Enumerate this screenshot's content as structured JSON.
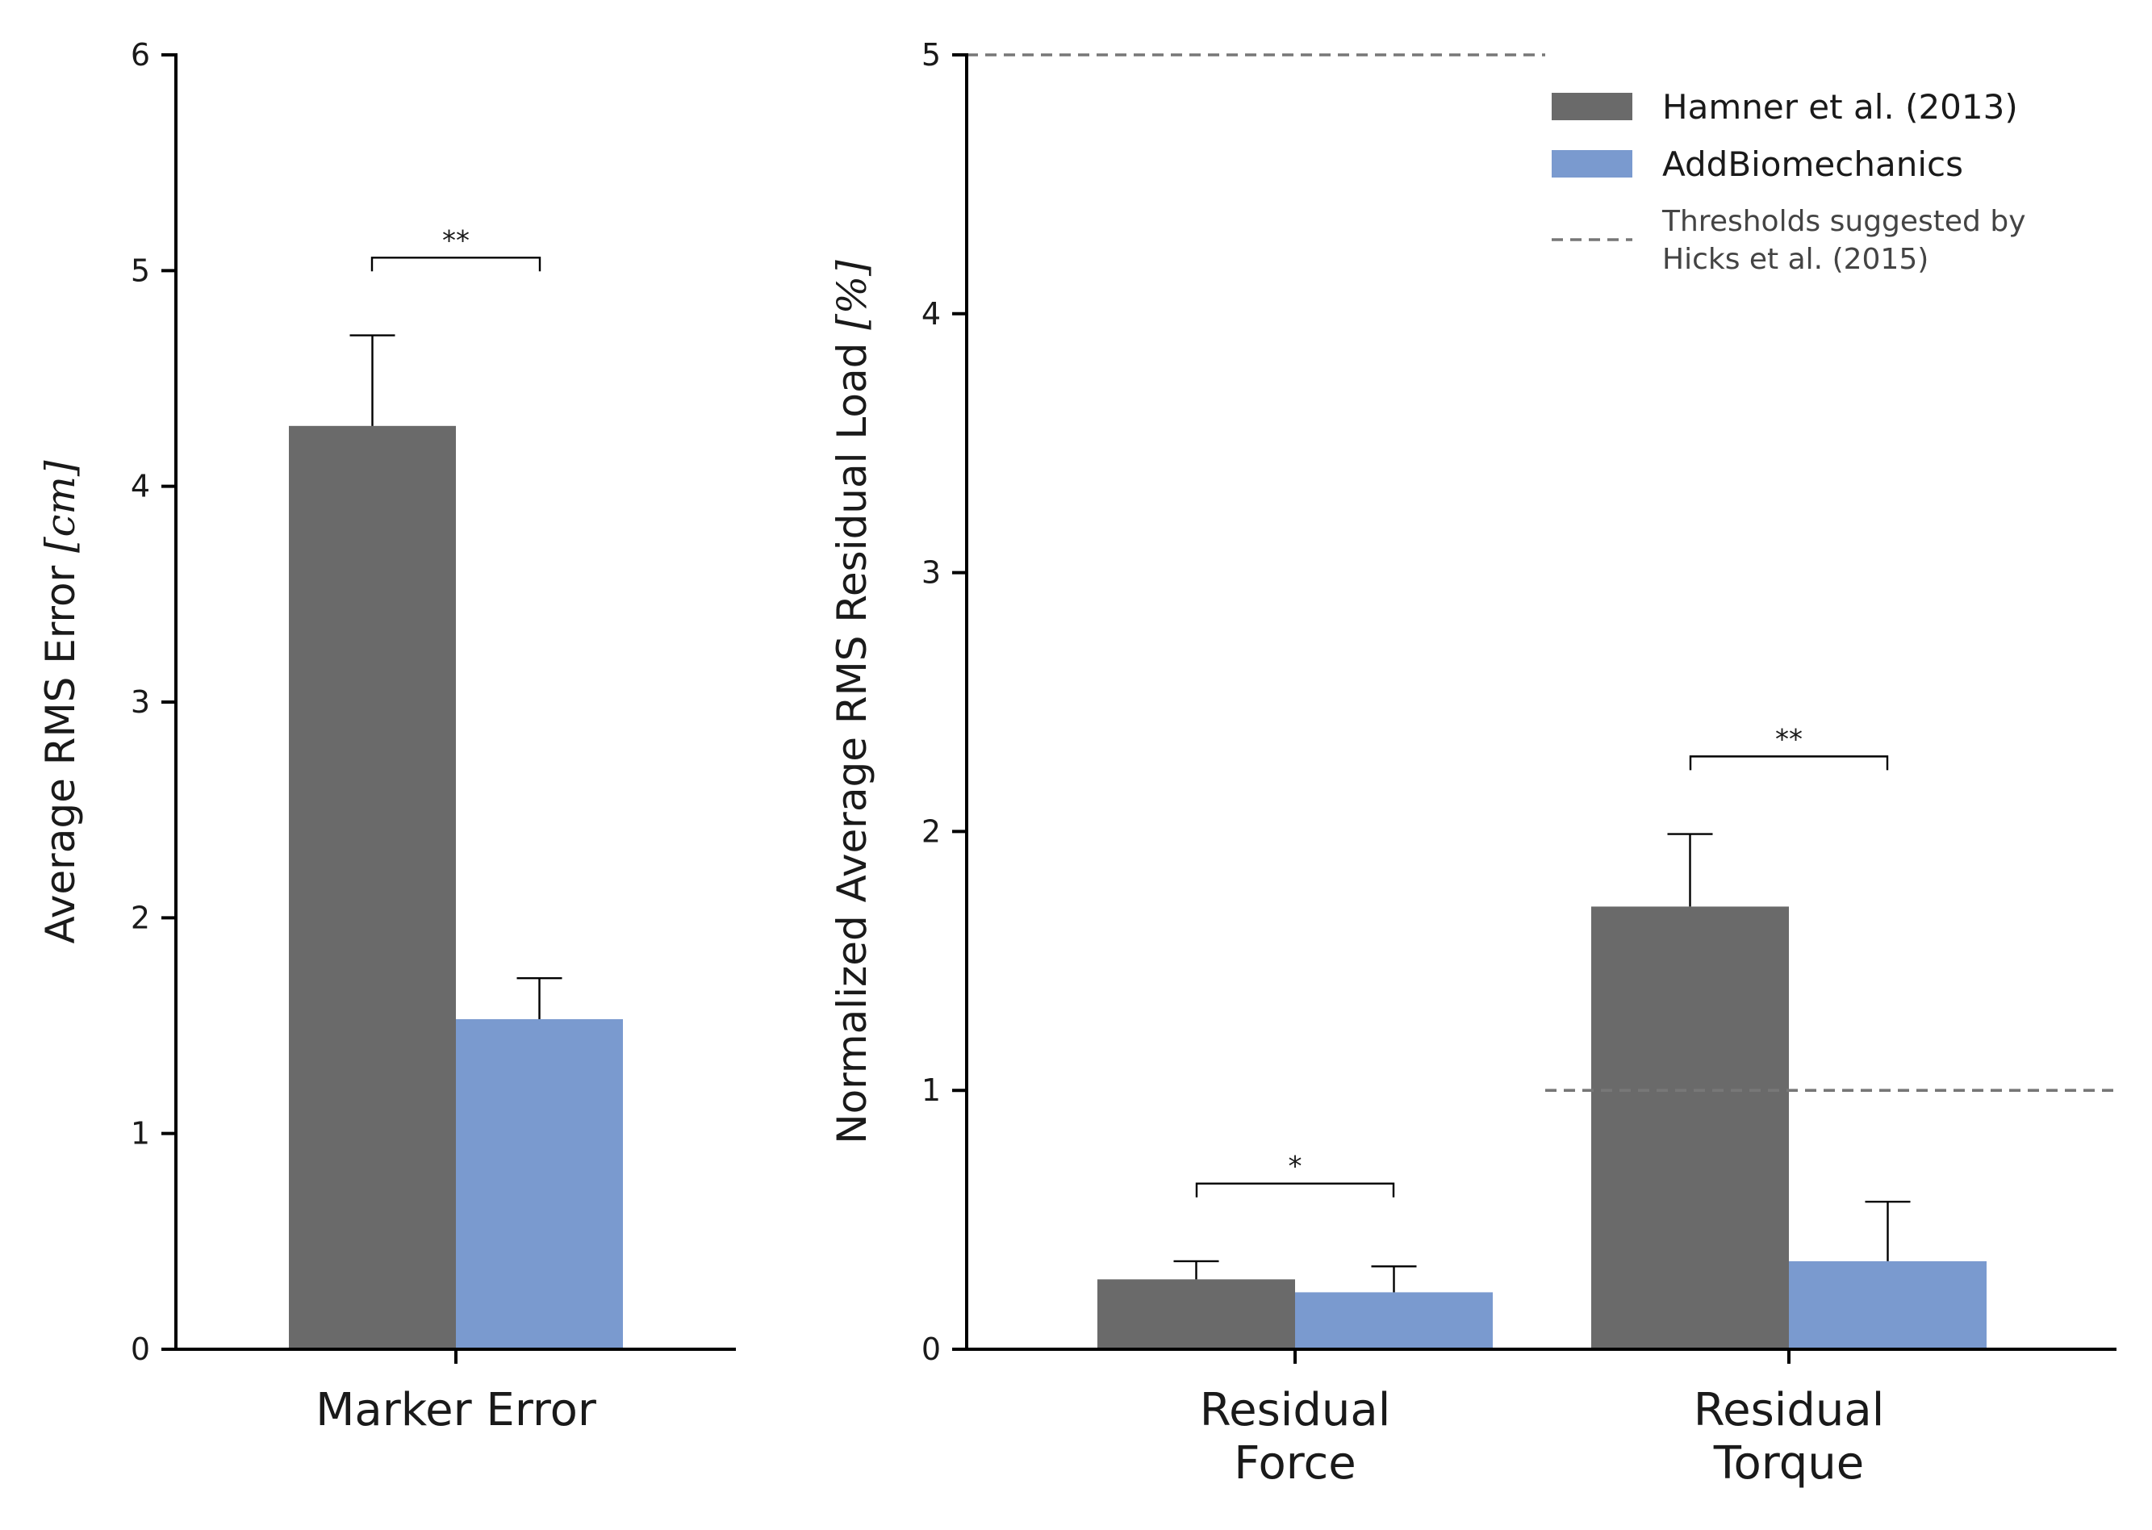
{
  "colors": {
    "hamner": "#6a6a6a",
    "addbio": "#7a9acf",
    "threshold": "#777777"
  },
  "chart_data": [
    {
      "type": "bar",
      "categories": [
        "Marker Error"
      ],
      "series": [
        {
          "name": "Hamner et al. (2013)",
          "values": [
            4.28
          ],
          "errors": [
            0.42
          ]
        },
        {
          "name": "AddBiomechanics",
          "values": [
            1.53
          ],
          "errors": [
            0.19
          ]
        }
      ],
      "ylabel": "Average RMS Error ",
      "ylabel_unit": "[cm]",
      "ylim": [
        0,
        6
      ],
      "yticks": [
        "0",
        "1",
        "2",
        "3",
        "4",
        "5",
        "6"
      ],
      "significance": [
        {
          "category": 0,
          "label": "**",
          "y": 5.06
        }
      ]
    },
    {
      "type": "bar",
      "categories": [
        [
          "Residual",
          "Force"
        ],
        [
          "Residual",
          "Torque"
        ]
      ],
      "series": [
        {
          "name": "Hamner et al. (2013)",
          "values": [
            0.27,
            1.71
          ],
          "errors": [
            0.07,
            0.28
          ]
        },
        {
          "name": "AddBiomechanics",
          "values": [
            0.22,
            0.34
          ],
          "errors": [
            0.1,
            0.23
          ]
        }
      ],
      "ylabel": "Normalized Average RMS Residual Load ",
      "ylabel_unit": "[%]",
      "ylim": [
        0,
        5
      ],
      "yticks": [
        "0",
        "1",
        "2",
        "3",
        "4",
        "5"
      ],
      "thresholds": [
        {
          "category": 0,
          "value": 5
        },
        {
          "category": 1,
          "value": 1
        }
      ],
      "significance": [
        {
          "category": 0,
          "label": "*",
          "y": 0.64
        },
        {
          "category": 1,
          "label": "**",
          "y": 2.29
        }
      ],
      "legend": {
        "placement": "top-right",
        "entries": [
          {
            "label": "Hamner et al. (2013)",
            "kind": "patch",
            "series": 0
          },
          {
            "label": "AddBiomechanics",
            "kind": "patch",
            "series": 1
          },
          {
            "label_lines": [
              "Thresholds suggested by",
              "Hicks et al. (2015)"
            ],
            "kind": "dashed-line"
          }
        ]
      }
    }
  ]
}
